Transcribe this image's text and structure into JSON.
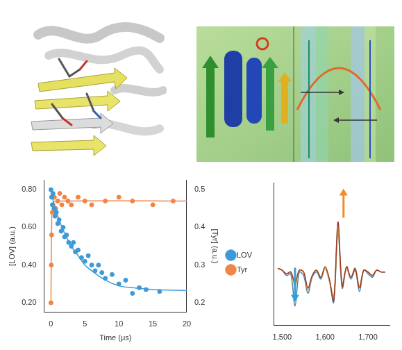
{
  "chart_data": [
    {
      "type": "scatter",
      "x_label": "Time (μs)",
      "y_label": "[LOV] (a.u.)",
      "y2_label": "[Tyr] (a.u.)",
      "xlim": [
        -1,
        20
      ],
      "xticks": [
        0,
        5,
        10,
        15,
        20
      ],
      "ylim": [
        0.15,
        0.85
      ],
      "yticks": [
        {
          "value": 0.2,
          "label": "0.20"
        },
        {
          "value": 0.4,
          "label": "0.40"
        },
        {
          "value": 0.6,
          "label": "0.60"
        },
        {
          "value": 0.8,
          "label": "0.80"
        }
      ],
      "y2lim": [
        0.175,
        0.525
      ],
      "y2ticks": [
        0.2,
        0.3,
        0.4,
        0.5
      ],
      "grid": false,
      "legend": "right",
      "series": [
        {
          "name": "LOV",
          "color": "#3d9ad6",
          "marker": "circle",
          "x": [
            0,
            0.1,
            0.2,
            0.3,
            0.5,
            0.6,
            0.8,
            1,
            1.2,
            1.5,
            1.8,
            2,
            2.3,
            2.6,
            3,
            3.3,
            3.6,
            4,
            4.5,
            5,
            5.5,
            6,
            6.5,
            7,
            7.5,
            8,
            9,
            10,
            11,
            12,
            13,
            14,
            16
          ],
          "values": [
            0.8,
            0.76,
            0.72,
            0.78,
            0.7,
            0.66,
            0.68,
            0.62,
            0.64,
            0.58,
            0.6,
            0.55,
            0.56,
            0.52,
            0.5,
            0.52,
            0.47,
            0.48,
            0.44,
            0.42,
            0.45,
            0.4,
            0.37,
            0.4,
            0.36,
            0.33,
            0.35,
            0.3,
            0.32,
            0.25,
            0.28,
            0.27,
            0.26
          ],
          "fit": {
            "x": [
              0,
              1,
              2,
              3,
              4,
              5,
              6,
              8,
              10,
              12,
              15,
              20
            ],
            "values": [
              0.78,
              0.66,
              0.57,
              0.5,
              0.45,
              0.4,
              0.37,
              0.32,
              0.29,
              0.28,
              0.27,
              0.265
            ]
          }
        },
        {
          "name": "Tyr",
          "color": "#ef8547",
          "marker": "circle",
          "axis": "y2",
          "x": [
            0,
            0.05,
            0.1,
            0.2,
            0.3,
            0.5,
            0.7,
            1,
            1.3,
            1.6,
            2,
            2.5,
            3,
            4,
            5,
            6,
            8,
            10,
            12,
            15,
            18
          ],
          "values": [
            0.2,
            0.3,
            0.38,
            0.44,
            0.46,
            0.48,
            0.45,
            0.47,
            0.49,
            0.46,
            0.48,
            0.47,
            0.46,
            0.48,
            0.47,
            0.46,
            0.47,
            0.48,
            0.47,
            0.46,
            0.47
          ],
          "fit": {
            "x": [
              0,
              0.1,
              0.3,
              1,
              20
            ],
            "values": [
              0.2,
              0.4,
              0.465,
              0.47,
              0.47
            ]
          }
        }
      ]
    },
    {
      "type": "line",
      "x": [
        1490,
        1500,
        1510,
        1520,
        1530,
        1540,
        1550,
        1560,
        1570,
        1580,
        1590,
        1600,
        1610,
        1620,
        1630,
        1640,
        1650,
        1660,
        1670,
        1680,
        1690,
        1700,
        1710,
        1720,
        1730,
        1740
      ],
      "xlim": [
        1480,
        1750
      ],
      "xticks": [
        {
          "value": 1500,
          "label": "1,500"
        },
        {
          "value": 1600,
          "label": "1,600"
        },
        {
          "value": 1700,
          "label": "1,700"
        }
      ],
      "ylim": [
        -3,
        5
      ],
      "tick_labels": "x",
      "grid": false,
      "series": [
        {
          "color": "#9b3b28",
          "values": [
            0.2,
            0.1,
            -0.1,
            0.0,
            -0.6,
            0.1,
            0.0,
            -0.9,
            -0.2,
            0.1,
            -0.3,
            0.3,
            -0.4,
            -1.6,
            2.8,
            -0.8,
            0.3,
            -0.3,
            0.2,
            -0.9,
            0.1,
            0.0,
            -0.2,
            0.1,
            0.0,
            0.0
          ]
        },
        {
          "color": "#e3b23c",
          "values": [
            0.2,
            0.1,
            -0.1,
            0.0,
            -0.8,
            0.1,
            0.0,
            -1.0,
            -0.2,
            0.1,
            -0.3,
            0.2,
            -0.5,
            -1.4,
            2.4,
            -0.7,
            0.2,
            -0.3,
            0.2,
            -0.8,
            0.1,
            0.0,
            -0.2,
            0.1,
            0.0,
            0.0
          ]
        },
        {
          "color": "#4a7fae",
          "values": [
            0.2,
            0.1,
            -0.2,
            -0.1,
            -1.9,
            0.0,
            -0.2,
            -1.2,
            -0.3,
            0.0,
            -0.4,
            0.2,
            -0.5,
            -1.7,
            2.2,
            -0.9,
            0.2,
            -0.4,
            0.1,
            -1.1,
            0.1,
            -0.1,
            -0.3,
            0.1,
            0.0,
            0.0
          ]
        }
      ]
    }
  ]
}
